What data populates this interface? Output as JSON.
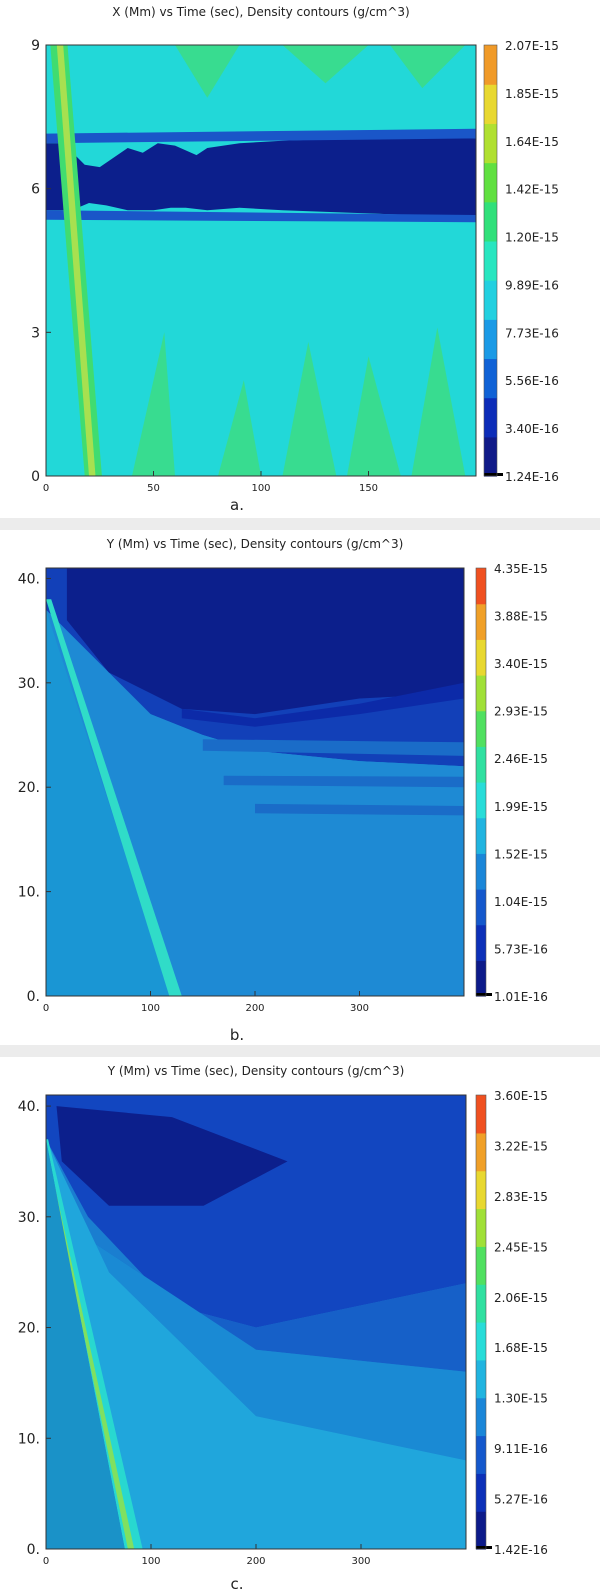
{
  "chart_data": [
    {
      "type": "heatmap",
      "title": "X (Mm) vs Time (sec),  Density contours (g/cm^3)",
      "panel_label": "a.",
      "xlim": [
        0,
        200
      ],
      "ylim": [
        0,
        9
      ],
      "x_ticks": [
        0,
        50,
        100,
        150
      ],
      "x_tick_labels": [
        "0",
        "50",
        "100",
        "150"
      ],
      "y_ticks": [
        0,
        3,
        6,
        9
      ],
      "y_tick_labels": [
        "0",
        "3",
        "6",
        "9"
      ],
      "colorbar_labels": [
        "2.07E-15",
        "1.85E-15",
        "1.64E-15",
        "1.42E-15",
        "1.20E-15",
        "9.89E-16",
        "7.73E-16",
        "5.56E-16",
        "3.40E-16",
        "1.24E-16"
      ],
      "colorbar_min": 1.24e-16,
      "colorbar_max": 2.07e-15,
      "background_color": "#22d8d8",
      "colorscale": [
        "#101a88",
        "#0c2cb8",
        "#1062d6",
        "#1a9ae6",
        "#22d0e0",
        "#28e6c0",
        "#30e07a",
        "#60e040",
        "#b0e030",
        "#e8d830",
        "#f09a28"
      ],
      "regions": [
        {
          "label": "low-density band",
          "color": "#0c1f8c",
          "polygon": [
            [
              0,
              5.55
            ],
            [
              12,
              5.55
            ],
            [
              20,
              5.7
            ],
            [
              28,
              5.65
            ],
            [
              38,
              5.55
            ],
            [
              50,
              5.55
            ],
            [
              58,
              5.6
            ],
            [
              65,
              5.6
            ],
            [
              75,
              5.55
            ],
            [
              90,
              5.6
            ],
            [
              110,
              5.55
            ],
            [
              140,
              5.5
            ],
            [
              170,
              5.45
            ],
            [
              200,
              5.45
            ],
            [
              200,
              7.05
            ],
            [
              170,
              7.1
            ],
            [
              140,
              7.05
            ],
            [
              110,
              7.0
            ],
            [
              90,
              6.95
            ],
            [
              75,
              6.85
            ],
            [
              70,
              6.7
            ],
            [
              60,
              6.9
            ],
            [
              52,
              6.95
            ],
            [
              45,
              6.75
            ],
            [
              38,
              6.85
            ],
            [
              25,
              6.45
            ],
            [
              18,
              6.5
            ],
            [
              8,
              6.95
            ],
            [
              0,
              6.95
            ]
          ]
        },
        {
          "label": "band edge",
          "color": "#1a56c8",
          "polygon": [
            [
              0,
              5.35
            ],
            [
              200,
              5.3
            ],
            [
              200,
              5.45
            ],
            [
              0,
              5.55
            ]
          ]
        },
        {
          "label": "band edge",
          "color": "#1a56c8",
          "polygon": [
            [
              0,
              6.95
            ],
            [
              200,
              7.05
            ],
            [
              200,
              7.25
            ],
            [
              0,
              7.15
            ]
          ]
        },
        {
          "label": "front",
          "color": "#40dc70",
          "polygon": [
            [
              2,
              9
            ],
            [
              10,
              9
            ],
            [
              26,
              0
            ],
            [
              18,
              0
            ]
          ]
        },
        {
          "label": "front",
          "color": "#a8e050",
          "polygon": [
            [
              5,
              9
            ],
            [
              8,
              9
            ],
            [
              23,
              0
            ],
            [
              20,
              0
            ]
          ]
        },
        {
          "label": "green patch",
          "color": "#38dc90",
          "polygon": [
            [
              60,
              9
            ],
            [
              75,
              7.9
            ],
            [
              90,
              9
            ]
          ]
        },
        {
          "label": "green patch",
          "color": "#38dc90",
          "polygon": [
            [
              110,
              9
            ],
            [
              130,
              8.2
            ],
            [
              150,
              9
            ]
          ]
        },
        {
          "label": "green patch",
          "color": "#38dc90",
          "polygon": [
            [
              160,
              9
            ],
            [
              175,
              8.1
            ],
            [
              195,
              9
            ]
          ]
        },
        {
          "label": "green patch",
          "color": "#38dc90",
          "polygon": [
            [
              40,
              0
            ],
            [
              55,
              3.0
            ],
            [
              60,
              0
            ]
          ]
        },
        {
          "label": "green patch",
          "color": "#38dc90",
          "polygon": [
            [
              80,
              0
            ],
            [
              92,
              2.0
            ],
            [
              100,
              0
            ]
          ]
        },
        {
          "label": "green patch",
          "color": "#38dc90",
          "polygon": [
            [
              110,
              0
            ],
            [
              122,
              2.8
            ],
            [
              135,
              0
            ]
          ]
        },
        {
          "label": "green patch",
          "color": "#38dc90",
          "polygon": [
            [
              140,
              0
            ],
            [
              150,
              2.5
            ],
            [
              165,
              0
            ]
          ]
        },
        {
          "label": "green patch",
          "color": "#38dc90",
          "polygon": [
            [
              170,
              0
            ],
            [
              182,
              3.1
            ],
            [
              195,
              0
            ]
          ]
        }
      ]
    },
    {
      "type": "heatmap",
      "title": "Y (Mm) vs Time (sec),  Density contours (g/cm^3)",
      "panel_label": "b.",
      "xlim": [
        0,
        400
      ],
      "ylim": [
        0,
        41
      ],
      "x_ticks": [
        0,
        100,
        200,
        300
      ],
      "x_tick_labels": [
        "0",
        "100",
        "200",
        "300"
      ],
      "y_ticks": [
        0,
        10,
        20,
        30,
        40
      ],
      "y_tick_labels": [
        "0.",
        "10.",
        "20.",
        "30.",
        "40."
      ],
      "colorbar_labels": [
        "4.35E-15",
        "3.88E-15",
        "3.40E-15",
        "2.93E-15",
        "2.46E-15",
        "1.99E-15",
        "1.52E-15",
        "1.04E-15",
        "5.73E-16",
        "1.01E-16"
      ],
      "colorbar_min": 1.01e-16,
      "colorbar_max": 4.35e-15,
      "background_color": "#1a96d4",
      "colorscale": [
        "#0c1a8a",
        "#0c30b8",
        "#1458cc",
        "#1a86d8",
        "#20b4e0",
        "#28dcd8",
        "#30e0a0",
        "#50e060",
        "#a0e038",
        "#e8d830",
        "#f0a028",
        "#f05020"
      ],
      "regions": [
        {
          "label": "dense upper layer",
          "color": "#1240b8",
          "polygon": [
            [
              0,
              41
            ],
            [
              400,
              41
            ],
            [
              400,
              22
            ],
            [
              300,
              22.5
            ],
            [
              200,
              23.5
            ],
            [
              150,
              25
            ],
            [
              100,
              27
            ],
            [
              0,
              37
            ]
          ]
        },
        {
          "label": "dark band",
          "color": "#0c1f8c",
          "polygon": [
            [
              20,
              41
            ],
            [
              400,
              41
            ],
            [
              400,
              29
            ],
            [
              300,
              28.5
            ],
            [
              200,
              27
            ],
            [
              130,
              27.5
            ],
            [
              60,
              31
            ],
            [
              20,
              36
            ]
          ]
        },
        {
          "label": "dark band",
          "color": "#0c2aa8",
          "polygon": [
            [
              130,
              27.5
            ],
            [
              200,
              26.6
            ],
            [
              300,
              28
            ],
            [
              400,
              30
            ],
            [
              400,
              28.5
            ],
            [
              300,
              27
            ],
            [
              200,
              25.8
            ],
            [
              130,
              26.6
            ]
          ]
        },
        {
          "label": "wake region",
          "color": "#1e8ad4",
          "polygon": [
            [
              0,
              37
            ],
            [
              120,
              0
            ],
            [
              400,
              0
            ],
            [
              400,
              22
            ],
            [
              300,
              22.5
            ],
            [
              200,
              23.5
            ],
            [
              150,
              25
            ],
            [
              100,
              27
            ]
          ]
        },
        {
          "label": "front edge",
          "color": "#30dcc8",
          "polygon": [
            [
              0,
              38
            ],
            [
              118,
              0
            ],
            [
              130,
              0
            ],
            [
              5,
              38
            ]
          ]
        },
        {
          "label": "layer line",
          "color": "#1a6cc8",
          "polygon": [
            [
              150,
              23.5
            ],
            [
              400,
              23
            ],
            [
              400,
              24.3
            ],
            [
              150,
              24.6
            ]
          ]
        },
        {
          "label": "layer line",
          "color": "#1a6cc8",
          "polygon": [
            [
              170,
              20.2
            ],
            [
              400,
              20
            ],
            [
              400,
              21.0
            ],
            [
              170,
              21.1
            ]
          ]
        },
        {
          "label": "layer line",
          "color": "#1a6cc8",
          "polygon": [
            [
              200,
              17.5
            ],
            [
              400,
              17.3
            ],
            [
              400,
              18.2
            ],
            [
              200,
              18.4
            ]
          ]
        }
      ]
    },
    {
      "type": "heatmap",
      "title": "Y (Mm) vs Time (sec),  Density contours (g/cm^3)",
      "panel_label": "c.",
      "xlim": [
        0,
        400
      ],
      "ylim": [
        0,
        41
      ],
      "x_ticks": [
        0,
        100,
        200,
        300
      ],
      "x_tick_labels": [
        "0",
        "100",
        "200",
        "300"
      ],
      "y_ticks": [
        0,
        10,
        20,
        30,
        40
      ],
      "y_tick_labels": [
        "0.",
        "10.",
        "20.",
        "30.",
        "40."
      ],
      "colorbar_labels": [
        "3.60E-15",
        "3.22E-15",
        "2.83E-15",
        "2.45E-15",
        "2.06E-15",
        "1.68E-15",
        "1.30E-15",
        "9.11E-16",
        "5.27E-16",
        "1.42E-16"
      ],
      "colorbar_min": 1.42e-16,
      "colorbar_max": 3.6e-15,
      "background_color": "#1a7ed0",
      "colorscale": [
        "#0c1a8a",
        "#0c30b8",
        "#1458cc",
        "#1a86d8",
        "#20b4e0",
        "#28dcd8",
        "#30e0a0",
        "#50e060",
        "#a0e038",
        "#e8d830",
        "#f0a028",
        "#f05020"
      ],
      "regions": [
        {
          "label": "upper layer",
          "color": "#1246c0",
          "polygon": [
            [
              0,
              41
            ],
            [
              400,
              41
            ],
            [
              400,
              24
            ],
            [
              300,
              22
            ],
            [
              200,
              20
            ],
            [
              120,
              22
            ],
            [
              40,
              30
            ],
            [
              0,
              37
            ]
          ]
        },
        {
          "label": "dark core",
          "color": "#0c1f8c",
          "polygon": [
            [
              10,
              40
            ],
            [
              120,
              39
            ],
            [
              230,
              35
            ],
            [
              150,
              31
            ],
            [
              60,
              31
            ],
            [
              15,
              35
            ]
          ]
        },
        {
          "label": "mid layer",
          "color": "#1660c8",
          "polygon": [
            [
              40,
              28
            ],
            [
              200,
              18
            ],
            [
              400,
              16
            ],
            [
              400,
              24
            ],
            [
              300,
              22
            ],
            [
              200,
              20
            ],
            [
              120,
              22
            ]
          ]
        },
        {
          "label": "lower layer",
          "color": "#1a8ad4",
          "polygon": [
            [
              60,
              25
            ],
            [
              200,
              12
            ],
            [
              400,
              8
            ],
            [
              400,
              16
            ],
            [
              200,
              18
            ],
            [
              40,
              28
            ]
          ]
        },
        {
          "label": "wake",
          "color": "#20a6dc",
          "polygon": [
            [
              0,
              37
            ],
            [
              80,
              0
            ],
            [
              400,
              0
            ],
            [
              400,
              8
            ],
            [
              200,
              12
            ],
            [
              60,
              25
            ]
          ]
        },
        {
          "label": "front",
          "color": "#28d8d0",
          "polygon": [
            [
              0,
              37
            ],
            [
              75,
              0
            ],
            [
              92,
              0
            ],
            [
              2,
              37
            ]
          ]
        },
        {
          "label": "front",
          "color": "#80e060",
          "polygon": [
            [
              0,
              36
            ],
            [
              78,
              0
            ],
            [
              84,
              0
            ],
            [
              1,
              36
            ]
          ]
        },
        {
          "label": "left region",
          "color": "#1a92c8",
          "polygon": [
            [
              0,
              0
            ],
            [
              0,
              37
            ],
            [
              75,
              0
            ]
          ]
        }
      ]
    }
  ]
}
